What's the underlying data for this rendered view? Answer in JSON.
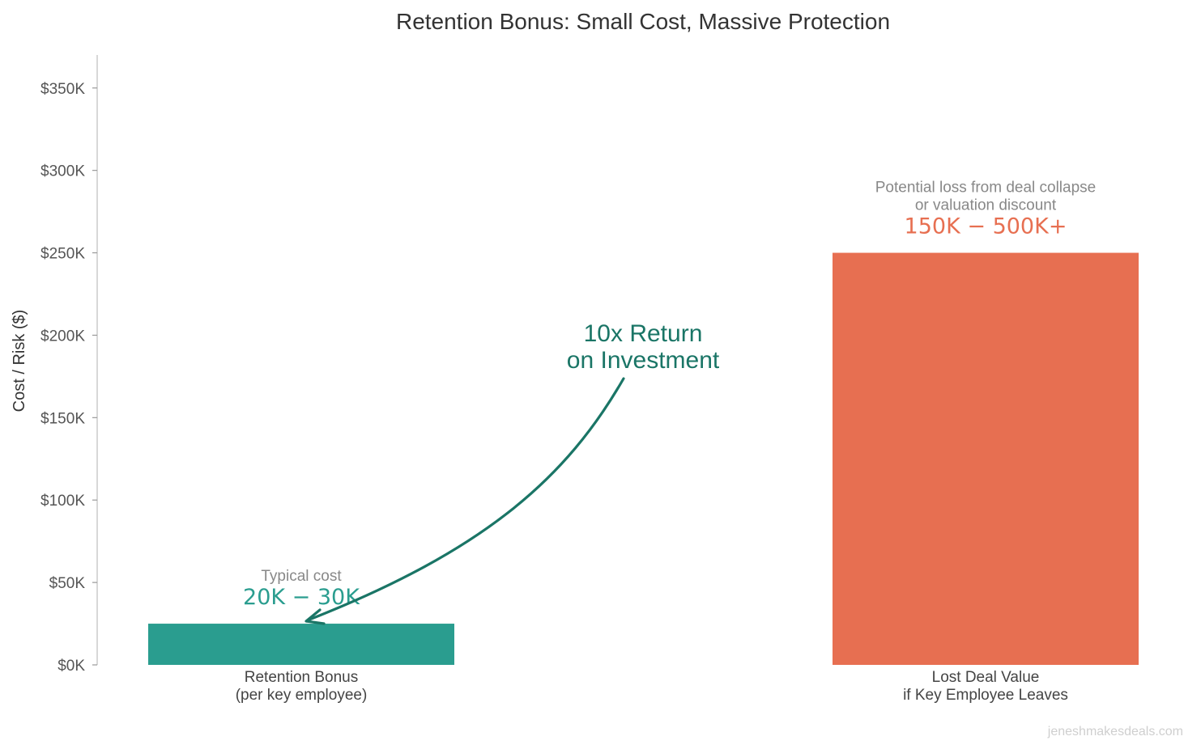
{
  "colors": {
    "retention": "#2a9d8f",
    "lost": "#e76f51",
    "arrow": "#1a7566",
    "note": "#888888",
    "axis": "#cccccc"
  },
  "chart_data": {
    "type": "bar",
    "title": "Retention Bonus: Small Cost, Massive Protection",
    "xlabel": "",
    "ylabel": "Cost / Risk ($)",
    "ylim": [
      0,
      370000
    ],
    "yticks": [
      0,
      50000,
      100000,
      150000,
      200000,
      250000,
      300000,
      350000
    ],
    "ytick_labels": [
      "$0K",
      "$50K",
      "$100K",
      "$150K",
      "$200K",
      "$250K",
      "$300K",
      "$350K"
    ],
    "categories": [
      [
        "Retention Bonus",
        "(per key employee)"
      ],
      [
        "Lost Deal Value",
        "if Key Employee Leaves"
      ]
    ],
    "values": [
      25000,
      250000
    ],
    "bar_colors": [
      "#2a9d8f",
      "#e76f51"
    ],
    "grid": false,
    "annotations": [
      {
        "bar": 0,
        "note": [
          "Typical cost"
        ],
        "value_label": "20K − 30K"
      },
      {
        "bar": 1,
        "note": [
          "Potential loss from deal collapse",
          "or valuation discount"
        ],
        "value_label": "150K − 500K+"
      }
    ],
    "arrow_label": [
      "10x Return",
      "on Investment"
    ]
  },
  "watermark": "jeneshmakesdeals.com"
}
